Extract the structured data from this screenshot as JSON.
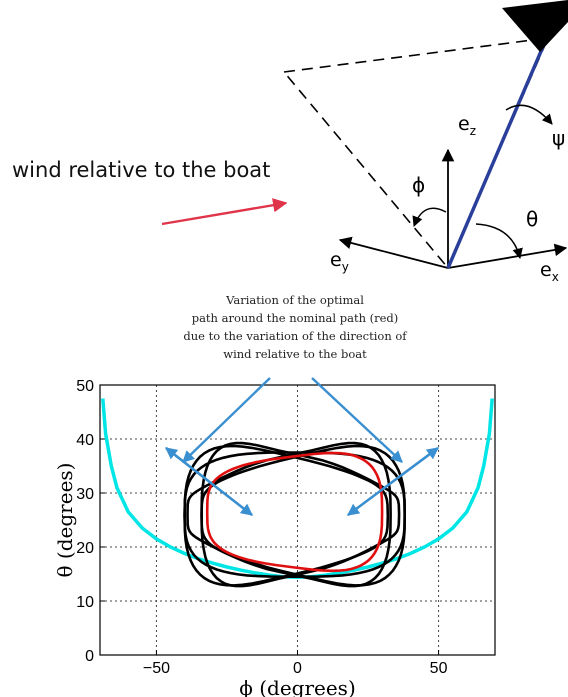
{
  "wind_label": "wind relative to the boat",
  "annotation_lines": [
    "Variation of the optimal",
    "path around the nominal path (red)",
    "due to the variation of the direction of",
    "wind relative to the boat"
  ],
  "diagram_symbols": {
    "ez": "e",
    "ez_sub": "z",
    "ey": "e",
    "ey_sub": "y",
    "ex": "e",
    "ex_sub": "x",
    "phi": "ϕ",
    "theta": "θ",
    "psi": "ψ"
  },
  "colors": {
    "mast": "#2a3f9a",
    "wind_arrow": "#e0344a",
    "nominal_path": "#e01010",
    "bounds": "#00e5e5",
    "variation_arrows": "#3a8fd0",
    "paths": "#000000"
  },
  "chart_data": {
    "type": "line",
    "xlabel": "ϕ (degrees)",
    "ylabel": "θ (degrees)",
    "xlim": [
      -70,
      70
    ],
    "ylim": [
      0,
      50
    ],
    "xticks": [
      -50,
      0,
      50
    ],
    "yticks": [
      0,
      10,
      20,
      30,
      40,
      50
    ],
    "xtick_labels": [
      "−50",
      "0",
      "50"
    ],
    "ytick_labels": [
      "0",
      "10",
      "20",
      "30",
      "40",
      "50"
    ],
    "grid": true,
    "bound_curve": {
      "color": "cyan",
      "x": [
        -69,
        -68,
        -66,
        -64,
        -60,
        -55,
        -50,
        -45,
        -40,
        -35,
        -30,
        -25,
        -20,
        -15,
        -10,
        -5,
        0,
        5,
        10,
        15,
        20,
        25,
        30,
        35,
        40,
        45,
        50,
        55,
        60,
        64,
        66,
        68,
        69
      ],
      "y": [
        47.5,
        41,
        35,
        31,
        26.5,
        23.5,
        21.5,
        20,
        18.8,
        17.8,
        17,
        16.3,
        15.7,
        15.2,
        14.8,
        14.5,
        14.4,
        14.5,
        14.8,
        15.2,
        15.7,
        16.3,
        17,
        17.8,
        18.8,
        20,
        21.5,
        23.5,
        26.5,
        31,
        35,
        41,
        47.5
      ]
    },
    "loops": [
      {
        "color": "red",
        "cx": -1,
        "cy": 26.5,
        "rx": 31,
        "ry": 10.3,
        "phase": 0,
        "skew": 1.0
      },
      {
        "color": "black",
        "cx": -1,
        "cy": 26.0,
        "rx": 39,
        "ry": 11.5,
        "phase": 0,
        "skew": 0.0
      },
      {
        "color": "black",
        "cx": -3,
        "cy": 26.0,
        "rx": 36,
        "ry": 11.0,
        "phase": 0.35,
        "skew": 1.2
      },
      {
        "color": "black",
        "cx": 1,
        "cy": 26.0,
        "rx": 35,
        "ry": 11.0,
        "phase": -0.35,
        "skew": -1.2
      },
      {
        "color": "black",
        "cx": 2,
        "cy": 25.8,
        "rx": 36,
        "ry": 11.2,
        "phase": 0.0,
        "skew": 2.2
      },
      {
        "color": "black",
        "cx": -4,
        "cy": 25.8,
        "rx": 36,
        "ry": 11.2,
        "phase": 0.0,
        "skew": -2.2
      }
    ]
  }
}
